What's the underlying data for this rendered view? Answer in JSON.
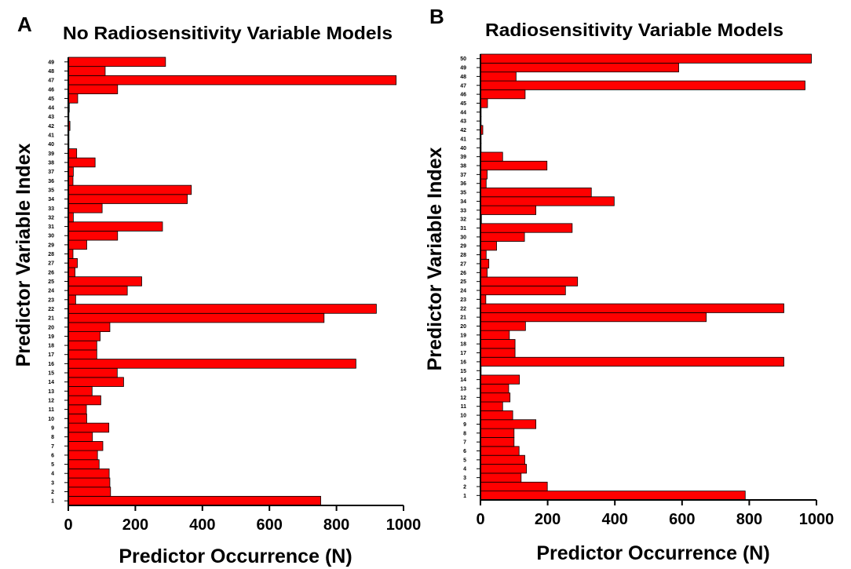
{
  "chart_data": [
    {
      "type": "bar",
      "orientation": "horizontal",
      "panel_label": "A",
      "title": "No Radiosensitivity Variable Models",
      "xlabel": "Predictor Occurrence (N)",
      "ylabel": "Predictor Variable Index",
      "xlim": [
        0,
        1000
      ],
      "xticks": [
        "0",
        "200",
        "400",
        "600",
        "800",
        "1000"
      ],
      "categories": [
        "1",
        "2",
        "3",
        "4",
        "5",
        "6",
        "7",
        "8",
        "9",
        "10",
        "11",
        "12",
        "13",
        "14",
        "15",
        "16",
        "17",
        "18",
        "19",
        "20",
        "21",
        "22",
        "23",
        "24",
        "25",
        "26",
        "27",
        "28",
        "29",
        "30",
        "31",
        "32",
        "33",
        "34",
        "35",
        "36",
        "37",
        "38",
        "39",
        "40",
        "41",
        "42",
        "43",
        "44",
        "45",
        "46",
        "47",
        "48",
        "49"
      ],
      "values": [
        753,
        126,
        124,
        122,
        92,
        87,
        103,
        72,
        121,
        55,
        54,
        97,
        71,
        165,
        146,
        858,
        85,
        85,
        95,
        124,
        763,
        919,
        22,
        176,
        219,
        20,
        27,
        14,
        55,
        147,
        281,
        15,
        101,
        355,
        367,
        14,
        15,
        80,
        25,
        2,
        2,
        5,
        2,
        3,
        28,
        147,
        978,
        110,
        290
      ],
      "bar_color": "#ff0000",
      "grid": false
    },
    {
      "type": "bar",
      "orientation": "horizontal",
      "panel_label": "B",
      "title": "Radiosensitivity Variable Models",
      "xlabel": "Predictor Occurrence (N)",
      "ylabel": "Predictor Variable Index",
      "xlim": [
        0,
        1000
      ],
      "xticks": [
        "0",
        "200",
        "400",
        "600",
        "800",
        "1000"
      ],
      "categories": [
        "1",
        "2",
        "3",
        "4",
        "5",
        "6",
        "7",
        "8",
        "9",
        "10",
        "11",
        "12",
        "13",
        "14",
        "15",
        "16",
        "17",
        "18",
        "19",
        "20",
        "21",
        "22",
        "23",
        "24",
        "25",
        "26",
        "27",
        "28",
        "29",
        "30",
        "31",
        "32",
        "33",
        "34",
        "35",
        "36",
        "37",
        "38",
        "39",
        "40",
        "41",
        "42",
        "43",
        "44",
        "45",
        "46",
        "47",
        "48",
        "49",
        "50"
      ],
      "values": [
        788,
        199,
        121,
        137,
        132,
        115,
        100,
        100,
        165,
        96,
        66,
        88,
        84,
        116,
        2,
        903,
        103,
        103,
        86,
        134,
        672,
        903,
        16,
        253,
        289,
        20,
        25,
        17,
        48,
        131,
        273,
        3,
        165,
        398,
        330,
        17,
        20,
        198,
        66,
        2,
        2,
        7,
        2,
        2,
        21,
        133,
        966,
        106,
        590,
        985
      ],
      "bar_color": "#ff0000",
      "grid": false
    }
  ]
}
